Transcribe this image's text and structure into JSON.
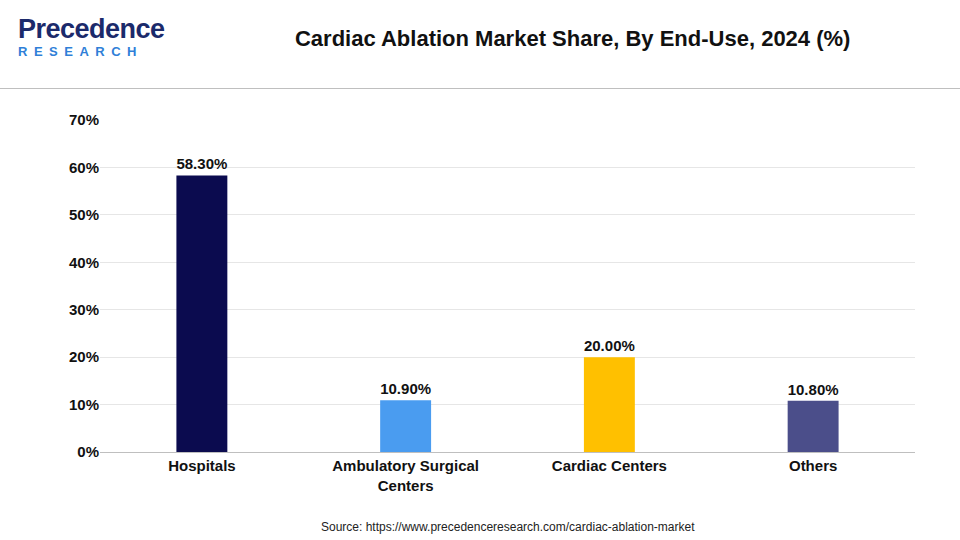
{
  "logo": [
    "Precedence",
    "RESEARCH"
  ],
  "chart_data": {
    "type": "bar",
    "title": "Cardiac Ablation Market Share, By End-Use, 2024 (%)",
    "categories": [
      "Hospitals",
      "Ambulatory Surgical Centers",
      "Cardiac Centers",
      "Others"
    ],
    "values": [
      58.3,
      10.9,
      20.0,
      10.8
    ],
    "value_labels": [
      "58.30%",
      "10.90%",
      "20.00%",
      "10.80%"
    ],
    "colors": [
      "#0b0b4f",
      "#4a9cf0",
      "#ffc000",
      "#4b4e8a"
    ],
    "data_labels": true,
    "ylim": [
      0,
      70
    ],
    "yticks": [
      {
        "value": 0,
        "label": "0%"
      },
      {
        "value": 10,
        "label": "10%"
      },
      {
        "value": 20,
        "label": "20%"
      },
      {
        "value": 30,
        "label": "30%"
      },
      {
        "value": 40,
        "label": "40%"
      },
      {
        "value": 50,
        "label": "50%"
      },
      {
        "value": 60,
        "label": "60%"
      },
      {
        "value": 70,
        "label": "70%"
      }
    ],
    "grid": true,
    "source": "Source: https://www.precedenceresearch.com/cardiac-ablation-market"
  }
}
